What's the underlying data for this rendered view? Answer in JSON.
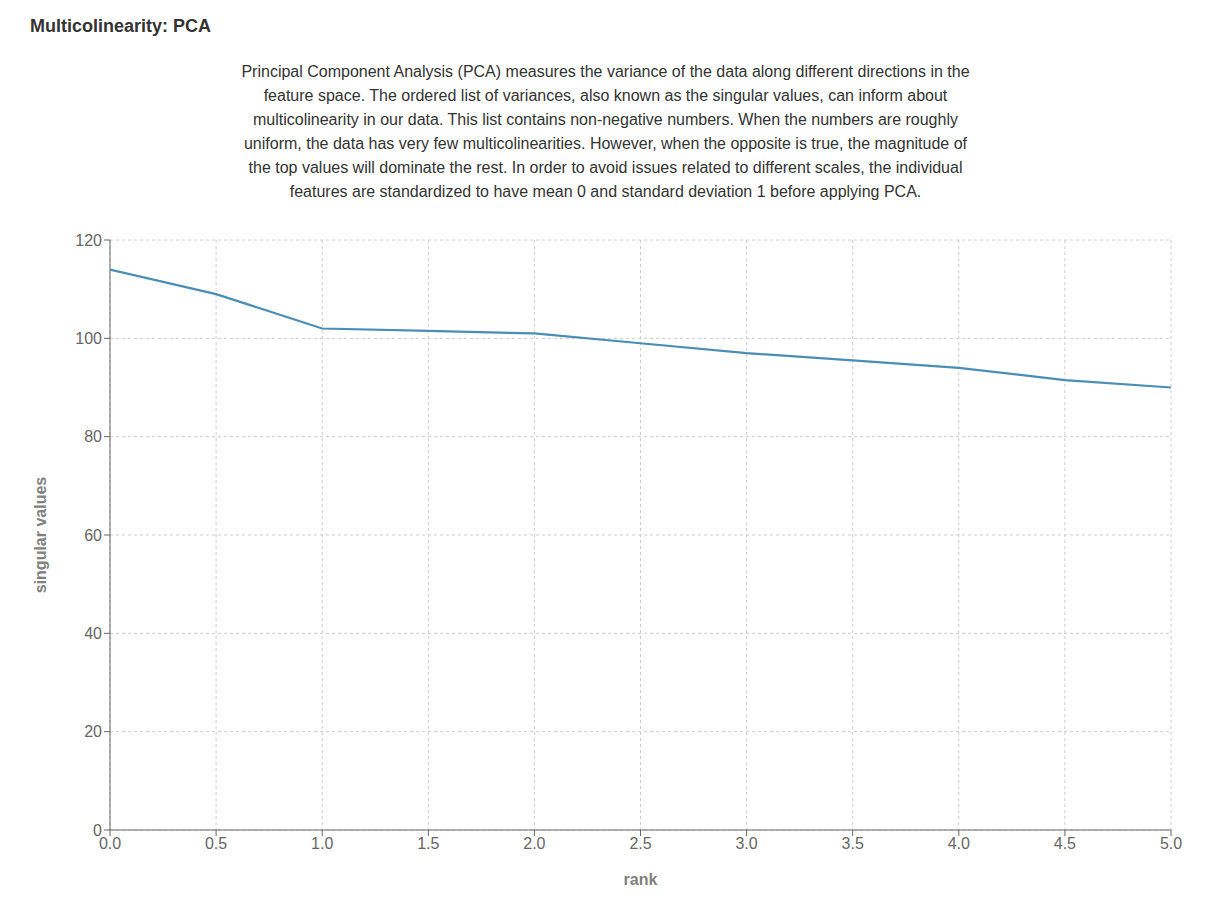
{
  "chart_data": {
    "type": "line",
    "title": "Multicolinearity: PCA",
    "subtitle": [
      "Principal Component Analysis (PCA) measures the variance of the data along different directions in the",
      "feature space. The ordered list of variances, also known as the singular values, can inform about",
      "multicolinearity in our data. This list contains non-negative numbers. When the numbers are roughly",
      "uniform, the data has very few multicolinearities. However, when the opposite is true, the magnitude of",
      "the top values will dominate the rest. In order to avoid issues related to different scales, the individual",
      "features are standardized to have mean 0 and standard deviation 1 before applying PCA."
    ],
    "x": [
      0.0,
      0.5,
      1.0,
      1.5,
      2.0,
      2.5,
      3.0,
      3.5,
      4.0,
      4.5,
      5.0
    ],
    "values": [
      114,
      109,
      102,
      101.5,
      101,
      99,
      97,
      95.5,
      94,
      91.5,
      90
    ],
    "color": "#4a8db5",
    "x_label": "rank",
    "y_label": "singular values",
    "xlim": [
      0,
      5
    ],
    "ylim": [
      0,
      120
    ],
    "xticks": [
      {
        "value": 0,
        "label": "0.0"
      },
      0.5,
      {
        "value": 1,
        "label": "1.0"
      },
      1.5,
      {
        "value": 2,
        "label": "2.0"
      },
      2.5,
      {
        "value": 3,
        "label": "3.0"
      },
      3.5,
      {
        "value": 4,
        "label": "4.0"
      },
      4.5,
      {
        "value": 5,
        "label": "5.0"
      }
    ],
    "yticks": [
      0,
      20,
      40,
      60,
      80,
      100,
      120
    ],
    "grid": true
  }
}
